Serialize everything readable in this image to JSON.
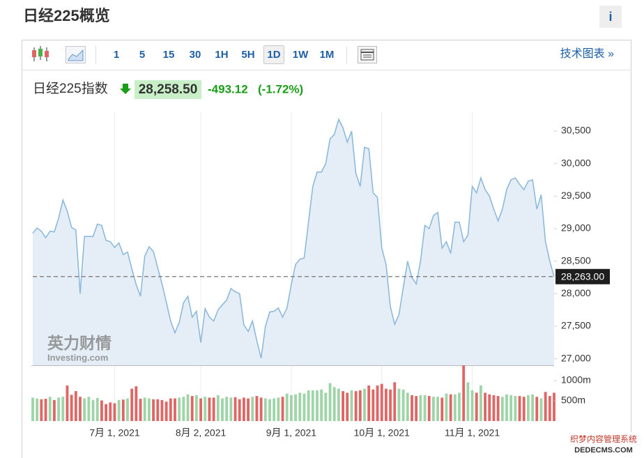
{
  "header": {
    "title": "日经225概览",
    "info_button": "i"
  },
  "toolbar": {
    "buttons": [
      "1",
      "5",
      "15",
      "30",
      "1H",
      "5H",
      "1D",
      "1W",
      "1M"
    ],
    "selected": "1D",
    "link": "技术图表 »"
  },
  "quote": {
    "name": "日经225指数",
    "price": "28,258.50",
    "change": "-493.12",
    "change_pct": "(-1.72%)"
  },
  "watermark": {
    "brand": "英力财情",
    "site": "Investing.com",
    "corner_line1": "织梦内容管理系统",
    "corner_line2": "DEDECMS.COM"
  },
  "chart_data": [
    {
      "type": "area",
      "color": "#8db9dc",
      "fill_color": "#e5eef7",
      "values": [
        28930,
        29010,
        28960,
        28860,
        28960,
        28950,
        29160,
        29440,
        29270,
        29020,
        28980,
        28000,
        28880,
        28880,
        28880,
        29070,
        29050,
        28820,
        28800,
        28710,
        28780,
        28600,
        28640,
        28380,
        28140,
        27960,
        28580,
        28720,
        28650,
        28400,
        28150,
        27870,
        27580,
        27400,
        27560,
        27860,
        27960,
        27640,
        27730,
        27250,
        27770,
        27640,
        27580,
        27750,
        27830,
        27900,
        28080,
        28030,
        28000,
        27520,
        27420,
        27580,
        27280,
        27010,
        27500,
        27720,
        27730,
        27780,
        27640,
        27780,
        28140,
        28450,
        28530,
        28550,
        29100,
        29650,
        29870,
        29870,
        30000,
        30380,
        30450,
        30680,
        30550,
        30330,
        30500,
        29850,
        29650,
        30250,
        30230,
        29550,
        29480,
        28700,
        28450,
        27800,
        27530,
        27680,
        28100,
        28500,
        28250,
        28150,
        28500,
        29050,
        29000,
        29200,
        29250,
        28700,
        28800,
        28620,
        29100,
        29100,
        28800,
        28900,
        29650,
        29550,
        29780,
        29600,
        29500,
        29300,
        29120,
        29300,
        29600,
        29750,
        29780,
        29680,
        29600,
        29730,
        29750,
        29300,
        29520,
        28800,
        28500,
        28263
      ],
      "ylim": [
        26900,
        30800
      ],
      "yticks": [
        {
          "value": 27000,
          "label": "27,000"
        },
        {
          "value": 27500,
          "label": "27,500"
        },
        {
          "value": 28000,
          "label": "28,000"
        },
        {
          "value": 28500,
          "label": "28,500"
        },
        {
          "value": 29000,
          "label": "29,000"
        },
        {
          "value": 29500,
          "label": "29,500"
        },
        {
          "value": 30000,
          "label": "30,000"
        },
        {
          "value": 30500,
          "label": "30,500"
        }
      ],
      "reference_line": {
        "value": 28263,
        "label": "28,263.00"
      }
    },
    {
      "type": "bar",
      "up_color": "#9fd4a8",
      "down_color": "#e06565",
      "values": [
        580,
        560,
        540,
        550,
        600,
        520,
        580,
        600,
        880,
        650,
        740,
        600,
        560,
        600,
        520,
        570,
        510,
        420,
        460,
        440,
        520,
        530,
        560,
        800,
        860,
        550,
        580,
        560,
        540,
        540,
        520,
        480,
        560,
        560,
        580,
        600,
        660,
        620,
        640,
        560,
        600,
        580,
        580,
        640,
        560,
        600,
        580,
        590,
        540,
        580,
        560,
        600,
        620,
        580,
        560,
        540,
        560,
        580,
        600,
        680,
        640,
        660,
        700,
        680,
        760,
        760,
        760,
        780,
        700,
        940,
        840,
        800,
        740,
        700,
        760,
        740,
        760,
        800,
        880,
        780,
        880,
        920,
        800,
        780,
        960,
        800,
        780,
        700,
        640,
        620,
        640,
        640,
        620,
        600,
        600,
        580,
        680,
        660,
        660,
        700,
        1380,
        960,
        760,
        700,
        880,
        700,
        660,
        640,
        620,
        600,
        660,
        640,
        620,
        620,
        600,
        640,
        660,
        600,
        560,
        720,
        620,
        700
      ],
      "ylim": [
        0,
        1380
      ],
      "yticks": [
        {
          "value": 500,
          "label": "500m"
        },
        {
          "value": 1000,
          "label": "1000m"
        }
      ],
      "xticks": [
        {
          "value": 19,
          "label": "7月 1, 2021"
        },
        {
          "value": 39,
          "label": "8月 2, 2021"
        },
        {
          "value": 60,
          "label": "9月 1, 2021"
        },
        {
          "value": 81,
          "label": "10月 1, 2021"
        },
        {
          "value": 102,
          "label": "11月 1, 2021"
        }
      ]
    }
  ]
}
